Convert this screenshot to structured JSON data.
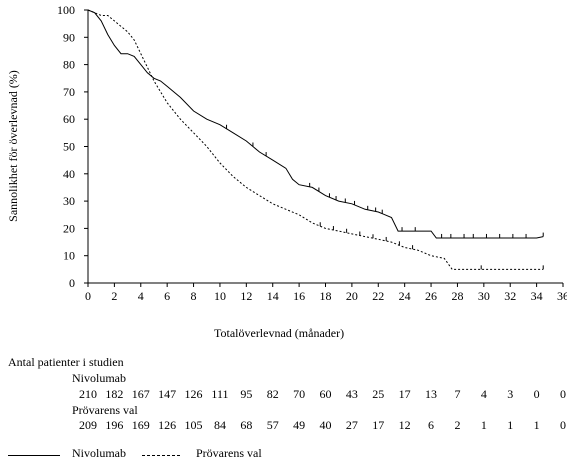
{
  "chart_data": {
    "type": "line",
    "ylabel": "Sannolikhet för överlevnad (%)",
    "xlabel": "Totalöverlevnad (månader)",
    "xlim": [
      0,
      36
    ],
    "ylim": [
      0,
      100
    ],
    "x_ticks": [
      0,
      2,
      4,
      6,
      8,
      10,
      12,
      14,
      16,
      18,
      20,
      22,
      24,
      26,
      28,
      30,
      32,
      34,
      36
    ],
    "y_ticks": [
      0,
      10,
      20,
      30,
      40,
      50,
      60,
      70,
      80,
      90,
      100
    ],
    "grid": false,
    "series": [
      {
        "name": "Nivolumab",
        "style": "solid",
        "color": "#000000",
        "points": [
          [
            0,
            100
          ],
          [
            0.5,
            99
          ],
          [
            1,
            96
          ],
          [
            1.5,
            91
          ],
          [
            2,
            87
          ],
          [
            2.5,
            84
          ],
          [
            3,
            84
          ],
          [
            3.5,
            83
          ],
          [
            4,
            80
          ],
          [
            4.5,
            77
          ],
          [
            5,
            75
          ],
          [
            5.5,
            74
          ],
          [
            6,
            72
          ],
          [
            7,
            68
          ],
          [
            8,
            63
          ],
          [
            9,
            60
          ],
          [
            10,
            58
          ],
          [
            11,
            55
          ],
          [
            12,
            52
          ],
          [
            13,
            48
          ],
          [
            14,
            45
          ],
          [
            15,
            42
          ],
          [
            15.5,
            38
          ],
          [
            16,
            36
          ],
          [
            17,
            35
          ],
          [
            18,
            32
          ],
          [
            19,
            30
          ],
          [
            20,
            29
          ],
          [
            21,
            27
          ],
          [
            22,
            26
          ],
          [
            23,
            24
          ],
          [
            23.5,
            19
          ],
          [
            24,
            19
          ],
          [
            25,
            19
          ],
          [
            26,
            19
          ],
          [
            26.4,
            16.5
          ],
          [
            30,
            16.5
          ],
          [
            34,
            16.5
          ],
          [
            34.5,
            17
          ]
        ],
        "censor_x": [
          10.5,
          12.5,
          13.5,
          16.8,
          17.5,
          18.3,
          18.8,
          19.5,
          20.2,
          21.2,
          21.8,
          22.3,
          23.8,
          24.8,
          26.8,
          27.5,
          28.5,
          29.2,
          30.2,
          31.2,
          32.2,
          33.2,
          34.5
        ]
      },
      {
        "name": "Prövarens val",
        "style": "dashed",
        "color": "#000000",
        "points": [
          [
            0,
            100
          ],
          [
            0.5,
            99
          ],
          [
            1,
            98
          ],
          [
            1.5,
            98
          ],
          [
            2,
            96
          ],
          [
            2.5,
            94
          ],
          [
            3,
            92
          ],
          [
            3.5,
            89
          ],
          [
            4,
            84
          ],
          [
            4.5,
            79
          ],
          [
            5,
            74
          ],
          [
            5.5,
            70
          ],
          [
            6,
            66
          ],
          [
            7,
            60
          ],
          [
            8,
            55
          ],
          [
            9,
            50
          ],
          [
            10,
            44
          ],
          [
            11,
            39
          ],
          [
            12,
            35
          ],
          [
            13,
            32
          ],
          [
            14,
            29
          ],
          [
            15,
            27
          ],
          [
            16,
            25
          ],
          [
            17,
            22
          ],
          [
            18,
            20
          ],
          [
            19,
            19
          ],
          [
            20,
            18
          ],
          [
            21,
            17
          ],
          [
            22,
            16
          ],
          [
            23,
            15
          ],
          [
            24,
            13
          ],
          [
            25,
            12
          ],
          [
            26,
            10
          ],
          [
            27,
            9
          ],
          [
            27.6,
            5
          ],
          [
            30,
            5
          ],
          [
            32,
            5
          ],
          [
            34.5,
            5
          ]
        ],
        "censor_x": [
          17.6,
          18.6,
          19.6,
          20.6,
          21.6,
          22.6,
          23.6,
          24.6,
          29.8,
          34.5
        ]
      }
    ],
    "risk_table": {
      "title": "Antal patienter i studien",
      "times": [
        0,
        2,
        4,
        6,
        8,
        10,
        12,
        14,
        16,
        18,
        20,
        22,
        24,
        26,
        28,
        30,
        32,
        34,
        36
      ],
      "rows": [
        {
          "label": "Nivolumab",
          "counts": [
            "210",
            "182",
            "167",
            "147",
            "126",
            "111",
            "95",
            "82",
            "70",
            "60",
            "43",
            "25",
            "17",
            "13",
            "7",
            "4",
            "3",
            "0",
            "0"
          ]
        },
        {
          "label": "Prövarens val",
          "counts": [
            "209",
            "196",
            "169",
            "126",
            "105",
            "84",
            "68",
            "57",
            "49",
            "40",
            "27",
            "17",
            "12",
            "6",
            "2",
            "1",
            "1",
            "1",
            "0"
          ]
        }
      ]
    },
    "legend": [
      {
        "label": "Nivolumab",
        "style": "solid"
      },
      {
        "label": "Prövarens val",
        "style": "dashed"
      }
    ]
  }
}
